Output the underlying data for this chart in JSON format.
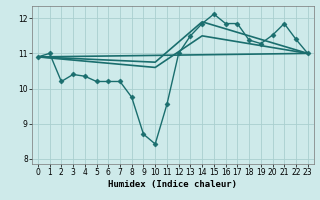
{
  "xlabel": "Humidex (Indice chaleur)",
  "background_color": "#ceeaea",
  "grid_color": "#aacfcf",
  "line_color": "#1a6e6e",
  "xlim": [
    -0.5,
    23.5
  ],
  "ylim": [
    7.85,
    12.35
  ],
  "yticks": [
    8,
    9,
    10,
    11,
    12
  ],
  "xticks": [
    0,
    1,
    2,
    3,
    4,
    5,
    6,
    7,
    8,
    9,
    10,
    11,
    12,
    13,
    14,
    15,
    16,
    17,
    18,
    19,
    20,
    21,
    22,
    23
  ],
  "detail_line": {
    "x": [
      0,
      1,
      2,
      3,
      4,
      5,
      6,
      7,
      8,
      9,
      10,
      11,
      12,
      13,
      14,
      15,
      16,
      17,
      18,
      19,
      20,
      21,
      22,
      23
    ],
    "y": [
      10.9,
      11.0,
      10.2,
      10.4,
      10.35,
      10.2,
      10.2,
      10.2,
      9.75,
      8.7,
      8.42,
      9.55,
      11.0,
      11.5,
      11.85,
      12.12,
      11.85,
      11.85,
      11.38,
      11.28,
      11.52,
      11.85,
      11.4,
      11.0
    ],
    "marker": "D",
    "markersize": 2.5,
    "linewidth": 1.0
  },
  "trend_lines": [
    {
      "x": [
        0,
        23
      ],
      "y": [
        10.9,
        11.0
      ],
      "linewidth": 1.2
    },
    {
      "x": [
        0,
        10,
        14,
        23
      ],
      "y": [
        10.9,
        10.6,
        11.5,
        11.0
      ],
      "linewidth": 1.2
    },
    {
      "x": [
        0,
        10,
        14,
        23
      ],
      "y": [
        10.9,
        10.75,
        11.9,
        11.0
      ],
      "linewidth": 1.2
    }
  ]
}
